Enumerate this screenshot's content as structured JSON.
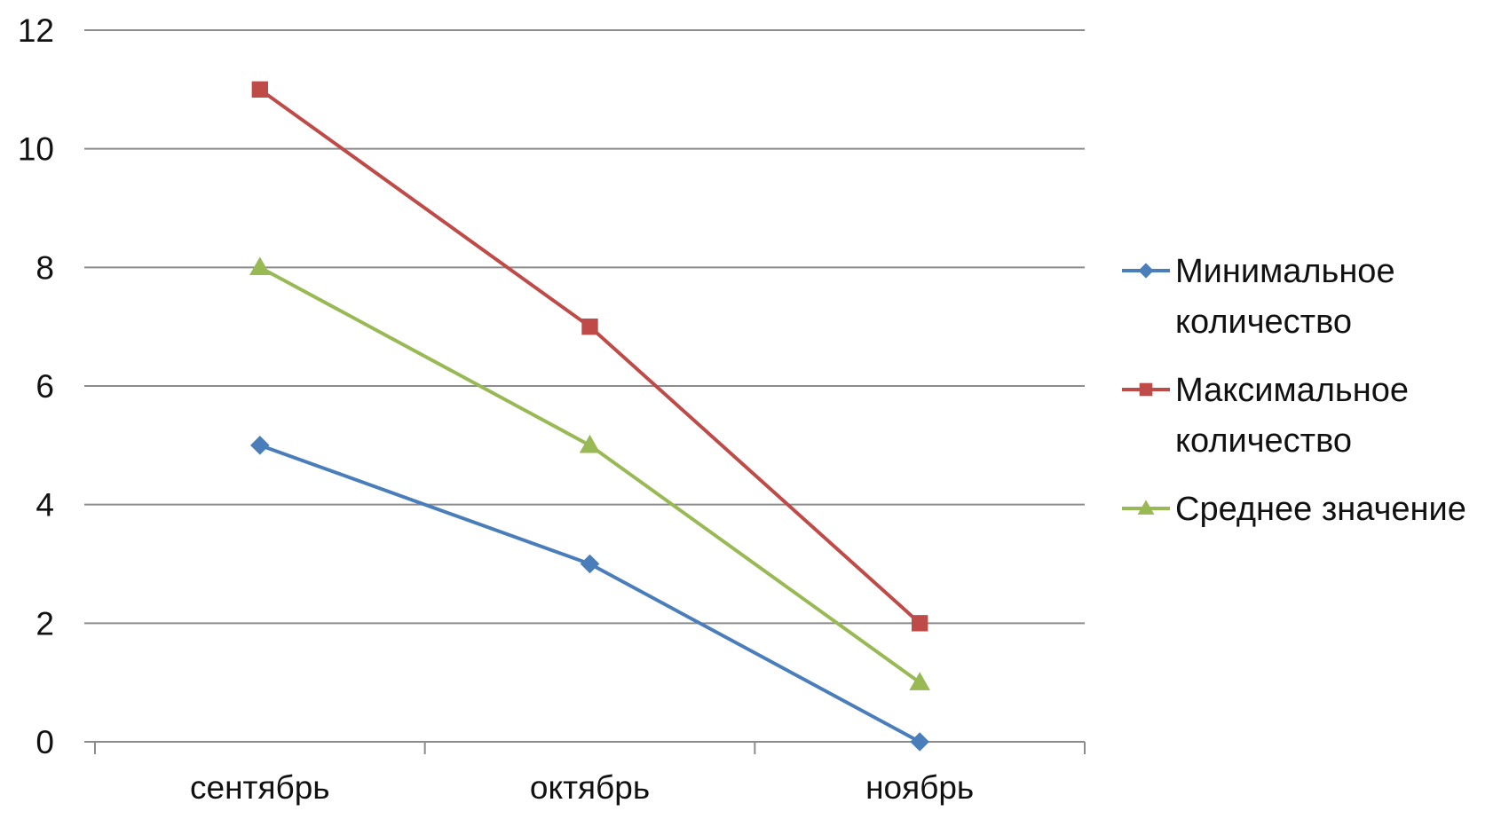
{
  "chart_data": {
    "type": "line",
    "title": "",
    "xlabel": "",
    "ylabel": "",
    "categories": [
      "сентябрь",
      "октябрь",
      "ноябрь"
    ],
    "ylim": [
      0,
      12
    ],
    "y_ticks": [
      0,
      2,
      4,
      6,
      8,
      10,
      12
    ],
    "y_tick_labels": [
      "0",
      "2",
      "4",
      "6",
      "8",
      "10",
      "12"
    ],
    "grid": true,
    "legend_position": "right",
    "series": [
      {
        "name": "Минимальное количество",
        "legend_lines": [
          "Минимальное",
          "количество"
        ],
        "values": [
          5,
          3,
          0
        ],
        "color": "#4a7ebb",
        "marker": "diamond"
      },
      {
        "name": "Максимальное количество",
        "legend_lines": [
          "Максимальное",
          "количество"
        ],
        "values": [
          11,
          7,
          2
        ],
        "color": "#be4b48",
        "marker": "square"
      },
      {
        "name": "Среднее значение",
        "legend_lines": [
          "Среднее значение"
        ],
        "values": [
          8,
          5,
          1
        ],
        "color": "#98b954",
        "marker": "triangle"
      }
    ]
  }
}
